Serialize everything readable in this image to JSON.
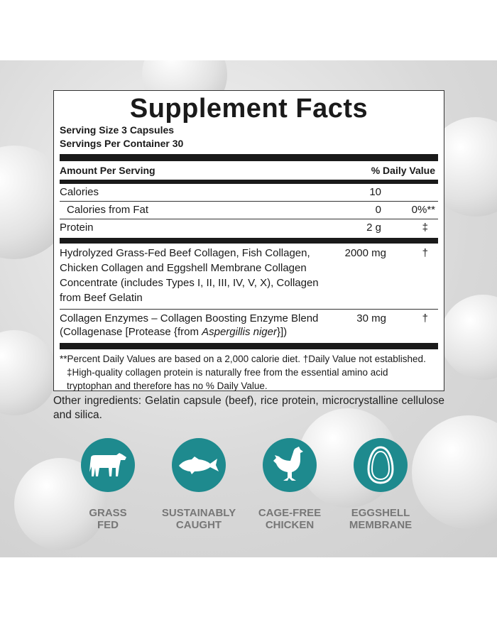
{
  "title": "Supplement Facts",
  "serving_size": "Serving Size 3 Capsules",
  "servings_per_container": "Servings Per Container 30",
  "header": {
    "amount": "Amount Per Serving",
    "dv": "% Daily Value"
  },
  "rows": [
    {
      "name": "Calories",
      "amount": "10",
      "dv": ""
    },
    {
      "name": "Calories from Fat",
      "amount": "0",
      "dv": "0%**"
    },
    {
      "name": "Protein",
      "amount": "2 g",
      "dv": "‡"
    }
  ],
  "ingredients": [
    {
      "name": "Hydrolyzed Grass-Fed Beef Collagen, Fish Collagen, Chicken Collagen and Eggshell Membrane Collagen Concentrate (includes Types I, II, III, IV, V, X), Collagen from Beef Gelatin",
      "amount": "2000 mg",
      "dv": "†"
    },
    {
      "name": "Collagen Enzymes – Collagen Boosting Enzyme Blend",
      "name2a": "(Collagenase [Protease {from ",
      "name2i": "Aspergillis niger",
      "name2b": "}])",
      "amount": "30 mg",
      "dv": "†"
    }
  ],
  "footnotes": [
    "**Percent Daily Values are based on a 2,000 calorie diet. †Daily Value not established.",
    "‡High-quality collagen protein is naturally free from the essential amino acid tryptophan and therefore has no % Daily Value."
  ],
  "other_ingredients": "Other ingredients: Gelatin capsule (beef), rice protein, microcrystalline cellulose and silica.",
  "badges": [
    {
      "icon": "cow-icon",
      "line1": "GRASS",
      "line2": "FED"
    },
    {
      "icon": "fish-icon",
      "line1": "SUSTAINABLY",
      "line2": "CAUGHT"
    },
    {
      "icon": "chicken-icon",
      "line1": "CAGE-FREE",
      "line2": "CHICKEN"
    },
    {
      "icon": "egg-icon",
      "line1": "EGGSHELL",
      "line2": "MEMBRANE"
    }
  ],
  "colors": {
    "badge": "#1e8a8e",
    "badge_text": "#777777"
  }
}
